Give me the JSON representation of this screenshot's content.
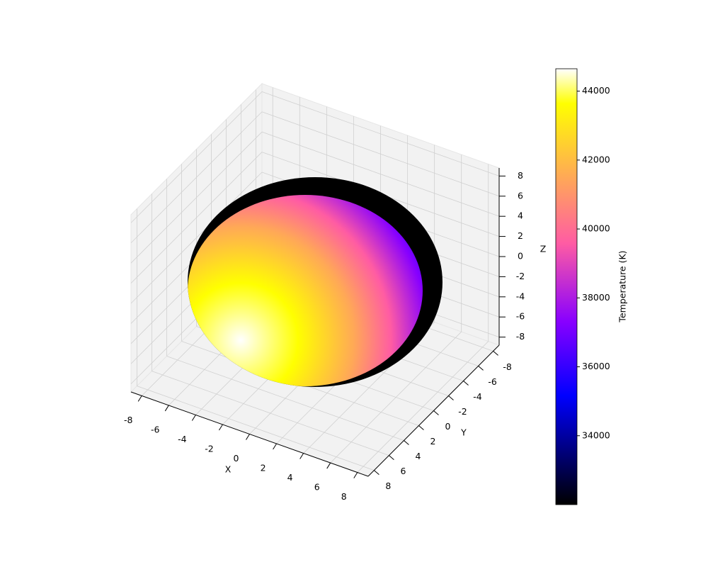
{
  "chart_data": {
    "type": "surface3d",
    "xlabel": "X",
    "ylabel": "Y",
    "zlabel": "Z",
    "xlim": [
      -8.8,
      8.8
    ],
    "ylim": [
      -8.8,
      8.8
    ],
    "zlim": [
      -8.8,
      8.8
    ],
    "xticks": [
      -8,
      -6,
      -4,
      -2,
      0,
      2,
      4,
      6,
      8
    ],
    "yticks": [
      -8,
      -6,
      -4,
      -2,
      0,
      2,
      4,
      6,
      8
    ],
    "zticks": [
      -8,
      -6,
      -4,
      -2,
      0,
      2,
      4,
      6,
      8
    ],
    "grid": true,
    "pane_color": "#f2f2f2",
    "colorbar": {
      "label": "Temperature (K)",
      "lim": [
        32000,
        44650
      ],
      "ticks": [
        34000,
        36000,
        38000,
        40000,
        42000,
        44000
      ],
      "colormap": [
        [
          0,
          "#000000"
        ],
        [
          0.25,
          "#0000ff"
        ],
        [
          0.42,
          "#8800ff"
        ],
        [
          0.6,
          "#ff5ca3"
        ],
        [
          0.75,
          "#ffa857"
        ],
        [
          0.92,
          "#ffff00"
        ],
        [
          1,
          "#ffffff"
        ]
      ]
    }
  }
}
